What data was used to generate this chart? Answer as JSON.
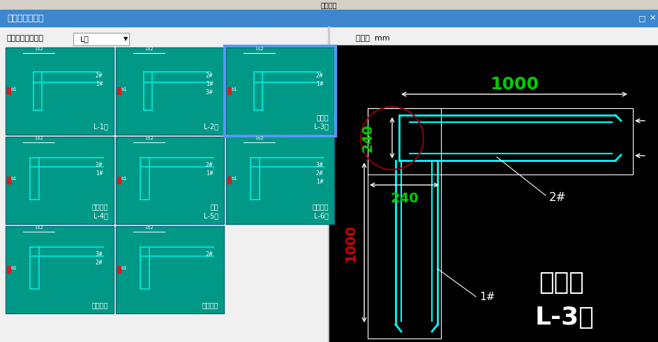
{
  "title_bar_text": "视助设置",
  "dialog_title": "选择参数化图形",
  "dialog_bg": "#4189d4",
  "dialog_title_color": "#ffffff",
  "label_text": "参数化截面类型：",
  "dropdown_text": "L形",
  "unit_text": "单位：  mm",
  "bg_color": "#f0f0f0",
  "teal_color": "#009999",
  "cyan_color": "#00ffff",
  "black_bg": "#000000",
  "green_color": "#00cc00",
  "red_color": "#ff0000",
  "white_color": "#ffffff",
  "grid_rows": 3,
  "grid_cols": 3,
  "tiles": [
    {
      "label": "L-1形",
      "type": "L1"
    },
    {
      "label": "L-2形",
      "type": "L2"
    },
    {
      "label": "预埋件\nL-3形",
      "type": "L3",
      "selected": true
    },
    {
      "label": "预留钢筋\nL-4形",
      "type": "L4"
    },
    {
      "label": "植筋\nL-5形",
      "type": "L5"
    },
    {
      "label": "预留钢筋\nL-6形",
      "type": "L6"
    },
    {
      "label": "预留钢筋",
      "type": "L7"
    },
    {
      "label": "预留钢筋",
      "type": "L8"
    },
    {
      "label": "",
      "type": "empty"
    }
  ],
  "right_panel_labels": [
    "1000",
    "240",
    "240",
    "1000",
    "2#",
    "1#",
    "预埋件",
    "L-3形"
  ]
}
